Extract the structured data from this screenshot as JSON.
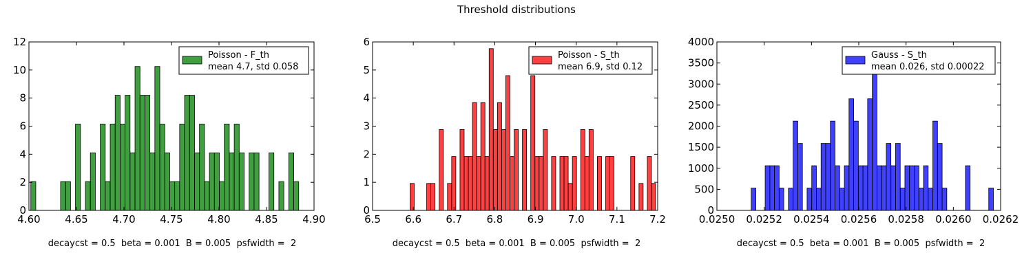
{
  "figure": {
    "title": "Threshold distributions"
  },
  "chart_data": [
    {
      "type": "bar",
      "color": "#008000",
      "legend": {
        "label": "Poisson - F_th",
        "stats": "mean 4.7, std 0.058",
        "placement": "upper right"
      },
      "caption": "decaycst = 0.5  beta = 0.001  B = 0.005  psfwidth =  2",
      "xlim": [
        4.6,
        4.9
      ],
      "ylim": [
        0,
        12
      ],
      "xticks": [
        "4.60",
        "4.65",
        "4.70",
        "4.75",
        "4.80",
        "4.85",
        "4.90"
      ],
      "xtick_values": [
        4.6,
        4.65,
        4.7,
        4.75,
        4.8,
        4.85,
        4.9
      ],
      "yticks": [
        "0",
        "2",
        "4",
        "6",
        "8",
        "10",
        "12"
      ],
      "ytick_values": [
        0,
        2,
        4,
        6,
        8,
        10,
        12
      ],
      "bin_start": 4.602,
      "bin_width": 0.00522,
      "counts": [
        2.05,
        0,
        0,
        0,
        0,
        0,
        2.05,
        2.05,
        0,
        6.15,
        0,
        2.05,
        4.1,
        0,
        6.15,
        2.05,
        6.15,
        8.2,
        6.15,
        8.2,
        4.1,
        10.25,
        8.2,
        8.2,
        4.1,
        10.25,
        6.15,
        4.1,
        2.05,
        2.05,
        6.15,
        8.2,
        8.2,
        4.1,
        6.15,
        2.05,
        4.1,
        4.1,
        2.05,
        6.15,
        4.1,
        6.15,
        4.1,
        0,
        4.1,
        4.1,
        0,
        0,
        4.1,
        0,
        2.05,
        0,
        4.1,
        2.05
      ]
    },
    {
      "type": "bar",
      "color": "#ff0000",
      "legend": {
        "label": "Poisson - S_th",
        "stats": "mean 6.9, std 0.12",
        "placement": "upper right"
      },
      "caption": "decaycst = 0.5  beta = 0.001  B = 0.005  psfwidth =  2",
      "xlim": [
        6.5,
        7.2
      ],
      "ylim": [
        0,
        6
      ],
      "xticks": [
        "6.5",
        "6.6",
        "6.7",
        "6.8",
        "6.9",
        "7.0",
        "7.1",
        "7.2"
      ],
      "xtick_values": [
        6.5,
        6.6,
        6.7,
        6.8,
        6.9,
        7.0,
        7.1,
        7.2
      ],
      "yticks": [
        "0",
        "1",
        "2",
        "3",
        "4",
        "5",
        "6"
      ],
      "ytick_values": [
        0,
        1,
        2,
        3,
        4,
        5,
        6
      ],
      "bin_start": 6.592,
      "bin_width": 0.01022,
      "counts": [
        0.96,
        0,
        0,
        0,
        0.96,
        0.96,
        0,
        2.88,
        0,
        0.96,
        1.92,
        0,
        2.88,
        1.92,
        1.92,
        3.84,
        1.92,
        3.84,
        1.92,
        5.76,
        2.88,
        3.84,
        2.88,
        4.8,
        1.92,
        2.88,
        0,
        2.88,
        0,
        4.8,
        1.92,
        1.92,
        2.88,
        0,
        1.92,
        0,
        1.92,
        1.92,
        0.96,
        1.92,
        0,
        2.88,
        1.92,
        2.88,
        0,
        1.92,
        0,
        1.92,
        1.92,
        0,
        0,
        0,
        0,
        1.92,
        0,
        0.96,
        0,
        1.92,
        0.96
      ]
    },
    {
      "type": "bar",
      "color": "#0000ff",
      "legend": {
        "label": "Gauss - S_th",
        "stats": "mean 0.026, std 0.00022",
        "placement": "upper right"
      },
      "caption": "decaycst = 0.5  beta = 0.001  B = 0.005  psfwidth =  2",
      "xlim": [
        0.025,
        0.0262
      ],
      "ylim": [
        0,
        4000
      ],
      "xticks": [
        "0.0250",
        "0.0252",
        "0.0254",
        "0.0256",
        "0.0258",
        "0.0260",
        "0.0262"
      ],
      "xtick_values": [
        0.025,
        0.0252,
        0.0254,
        0.0256,
        0.0258,
        0.026,
        0.0262
      ],
      "yticks": [
        "0",
        "500",
        "1000",
        "1500",
        "2000",
        "2500",
        "3000",
        "3500",
        "4000"
      ],
      "ytick_values": [
        0,
        500,
        1000,
        1500,
        2000,
        2500,
        3000,
        3500,
        4000
      ],
      "bin_start": 0.025145,
      "bin_width": 1.97e-05,
      "counts": [
        530,
        0,
        0,
        1060,
        1060,
        1060,
        530,
        0,
        530,
        2120,
        1590,
        0,
        530,
        1060,
        530,
        1590,
        1590,
        2120,
        1060,
        530,
        1060,
        2650,
        2120,
        1060,
        1060,
        2650,
        3300,
        1060,
        1060,
        1590,
        1060,
        1590,
        530,
        1060,
        1060,
        1060,
        530,
        1060,
        530,
        2120,
        1590,
        530,
        0,
        0,
        0,
        0,
        1060,
        0,
        0,
        0,
        0,
        530
      ]
    }
  ]
}
